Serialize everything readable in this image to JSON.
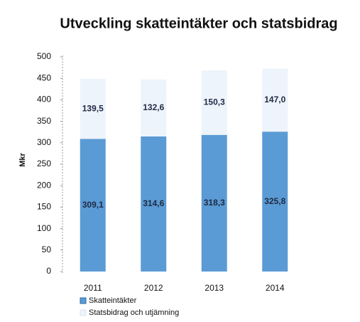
{
  "chart_data": {
    "type": "stacked_bar",
    "title": "Utveckling skatteintäkter och statsbidrag",
    "y_label": "Mkr",
    "categories": [
      "2011",
      "2012",
      "2013",
      "2014"
    ],
    "series": [
      {
        "name": "Skatteintäkter",
        "color": "#5b9bd5",
        "values": [
          309.1,
          314.6,
          318.3,
          325.8
        ],
        "value_labels": [
          "309,1",
          "314,6",
          "318,3",
          "325,8"
        ]
      },
      {
        "name": "Statsbidrag och utjämning",
        "color": "#eef4fb",
        "values": [
          139.5,
          132.6,
          150.3,
          147.0
        ],
        "value_labels": [
          "139,5",
          "132,6",
          "150,3",
          "147,0"
        ]
      }
    ],
    "ylim": [
      0,
      500
    ],
    "yticks": [
      0,
      50,
      100,
      150,
      200,
      250,
      300,
      350,
      400,
      450,
      500
    ]
  }
}
